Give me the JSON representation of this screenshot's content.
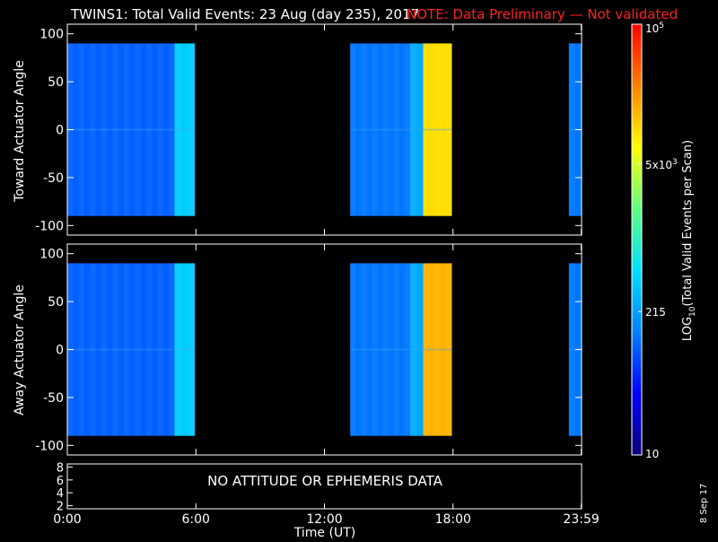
{
  "header": {
    "title": "TWINS1: Total Valid Events: 23 Aug (day 235), 2017",
    "note": "NOTE: Data Preliminary — Not validated"
  },
  "colors": {
    "background": "#000000",
    "axes": "#ffffff",
    "note": "#ff2020"
  },
  "colorbar": {
    "label_main": "LOG",
    "label_sub": "10",
    "label_rest": "(Total Valid Events per Scan)",
    "scale": "log",
    "range": [
      10,
      100000
    ],
    "ticks": [
      {
        "value": 10,
        "label": "10"
      },
      {
        "value": 215,
        "label": "215"
      },
      {
        "value": 5000,
        "label": "5x10",
        "sup": "3"
      },
      {
        "value": 100000,
        "label": "10",
        "sup": "5"
      }
    ],
    "colormap": [
      "#0a0078",
      "#0000ff",
      "#0080ff",
      "#00e0ff",
      "#60ff80",
      "#ffff00",
      "#ff8000",
      "#ff0000"
    ]
  },
  "x_axis": {
    "label": "Time (UT)",
    "range_hours": [
      0,
      24
    ],
    "ticks": [
      {
        "value": 0,
        "label": "0:00"
      },
      {
        "value": 6,
        "label": "6:00"
      },
      {
        "value": 12,
        "label": "12:00"
      },
      {
        "value": 18,
        "label": "18:00"
      },
      {
        "value": 23.983,
        "label": "23:59"
      }
    ]
  },
  "panel3": {
    "message": "NO ATTITUDE OR EPHEMERIS DATA",
    "ylim": [
      1.5,
      8.5
    ],
    "ticks": [
      2,
      4,
      6,
      8
    ]
  },
  "side_date": "8 Sep 17",
  "chart_data": [
    {
      "type": "heatmap",
      "ylabel": "Toward Actuator Angle",
      "xlabel": "Time (UT)",
      "xlim_hours": [
        0,
        24
      ],
      "ylim": [
        -110,
        110
      ],
      "yticks": [
        -100,
        -50,
        0,
        50,
        100
      ],
      "data_angle_range": [
        -90,
        90
      ],
      "coverage_hours": [
        [
          0,
          5.95
        ],
        [
          13.2,
          17.95
        ],
        [
          23.4,
          24
        ]
      ],
      "value_bands": [
        {
          "hours": [
            0,
            5.0
          ],
          "level_log10": 2.0
        },
        {
          "hours": [
            5.0,
            5.95
          ],
          "level_log10": 2.6
        },
        {
          "hours": [
            13.2,
            16.0
          ],
          "level_log10": 2.1
        },
        {
          "hours": [
            16.0,
            16.6
          ],
          "level_log10": 2.4
        },
        {
          "hours": [
            16.6,
            17.95
          ],
          "level_log10": 4.0
        },
        {
          "hours": [
            23.4,
            24
          ],
          "level_log10": 2.1
        }
      ]
    },
    {
      "type": "heatmap",
      "ylabel": "Away Actuator Angle",
      "xlabel": "Time (UT)",
      "xlim_hours": [
        0,
        24
      ],
      "ylim": [
        -110,
        110
      ],
      "yticks": [
        -100,
        -50,
        0,
        50,
        100
      ],
      "data_angle_range": [
        -90,
        90
      ],
      "coverage_hours": [
        [
          0,
          5.95
        ],
        [
          13.2,
          17.95
        ],
        [
          23.4,
          24
        ]
      ],
      "value_bands": [
        {
          "hours": [
            0,
            5.0
          ],
          "level_log10": 2.0
        },
        {
          "hours": [
            5.0,
            5.95
          ],
          "level_log10": 2.6
        },
        {
          "hours": [
            13.2,
            16.0
          ],
          "level_log10": 2.1
        },
        {
          "hours": [
            16.0,
            16.6
          ],
          "level_log10": 2.4
        },
        {
          "hours": [
            16.6,
            17.95
          ],
          "level_log10": 4.2
        },
        {
          "hours": [
            23.4,
            24
          ],
          "level_log10": 2.1
        }
      ]
    }
  ]
}
